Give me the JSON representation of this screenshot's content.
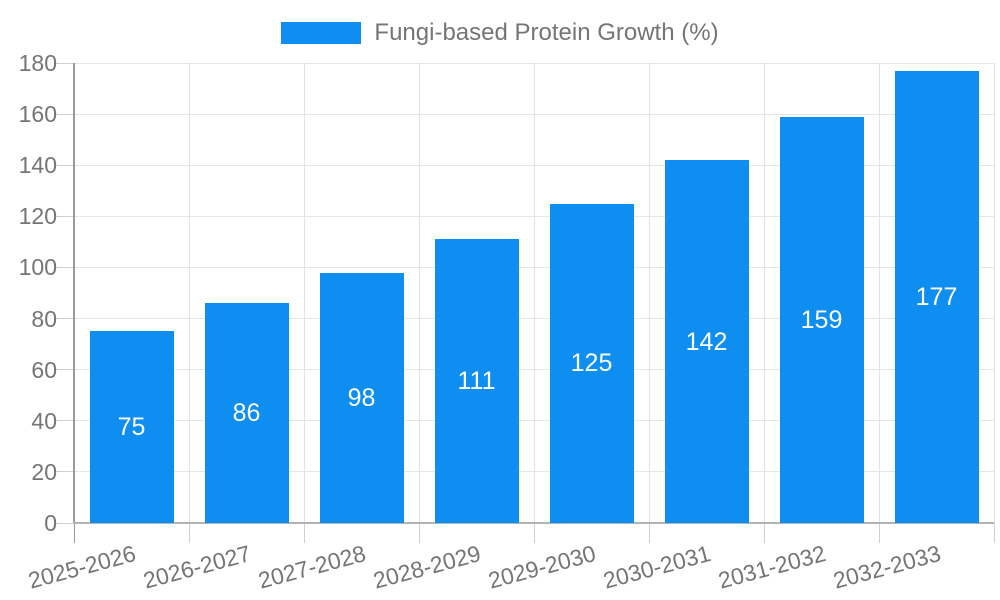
{
  "chart_data": {
    "type": "bar",
    "legend_label": "Fungi-based Protein Growth (%)",
    "categories": [
      "2025-2026",
      "2026-2027",
      "2027-2028",
      "2028-2029",
      "2029-2030",
      "2030-2031",
      "2031-2032",
      "2032-2033"
    ],
    "values": [
      75,
      86,
      98,
      111,
      125,
      142,
      159,
      177
    ],
    "xlabel": "",
    "ylabel": "",
    "ylim": [
      0,
      180
    ],
    "y_ticks": [
      0,
      20,
      40,
      60,
      80,
      100,
      120,
      140,
      160,
      180
    ],
    "grid": true,
    "legend_position": "top-center",
    "bar_labels_inside": true
  },
  "colors": {
    "bar": "#0d8ef0",
    "bar_label_text": "#ffffff",
    "axis_text": "#757575",
    "gridline": "#e6e6e6",
    "tick": "#d0d0d0",
    "y_axis_line": "#9a9a9a",
    "x_axis_line": "#b3b3b3",
    "background": "#ffffff"
  }
}
